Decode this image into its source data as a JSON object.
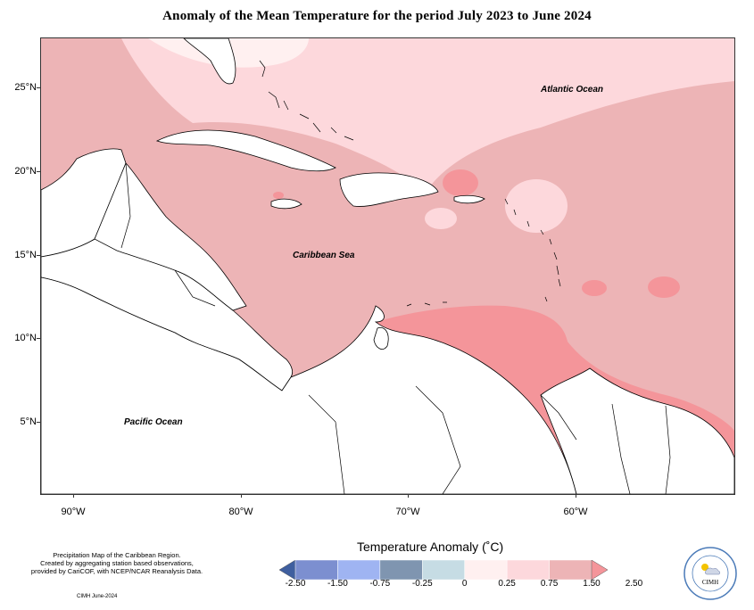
{
  "title": "Anomaly of the Mean Temperature for the period July 2023 to June 2024",
  "axes": {
    "y_ticks": [
      "25°N",
      "20°N",
      "15°N",
      "10°N",
      "5°N"
    ],
    "x_ticks": [
      "90°W",
      "80°W",
      "70°W",
      "60°W"
    ]
  },
  "labels": {
    "atlantic": "Atlantic Ocean",
    "caribbean": "Caribbean Sea",
    "pacific": "Pacific Ocean"
  },
  "legend": {
    "title": "Temperature Anomaly (˚C)",
    "values": [
      "-2.50",
      "-1.50",
      "-0.75",
      "-0.25",
      "0",
      "0.25",
      "0.75",
      "1.50",
      "2.50"
    ],
    "colors": [
      "#3f5f9f",
      "#7c8fd0",
      "#9fb4f2",
      "#7f95b0",
      "#c6dce4",
      "#fff0f0",
      "#fdd8dc",
      "#edb4b6",
      "#f4959a"
    ]
  },
  "credit": {
    "lines": [
      "Precipitation Map of the Caribbean Region.",
      "Created by aggregating station based observations,",
      "provided by CariCOF, with NCEP/NCAR Reanalysis Data."
    ],
    "date": "CIMH June-2024"
  },
  "logo": {
    "text": "CIMH",
    "icon": "sun-cloud-icon"
  },
  "colors": {
    "warm_light": "#fdd8dc",
    "warm_mid": "#edb4b6",
    "warm_high": "#f4959a",
    "land": "#ffffff"
  }
}
